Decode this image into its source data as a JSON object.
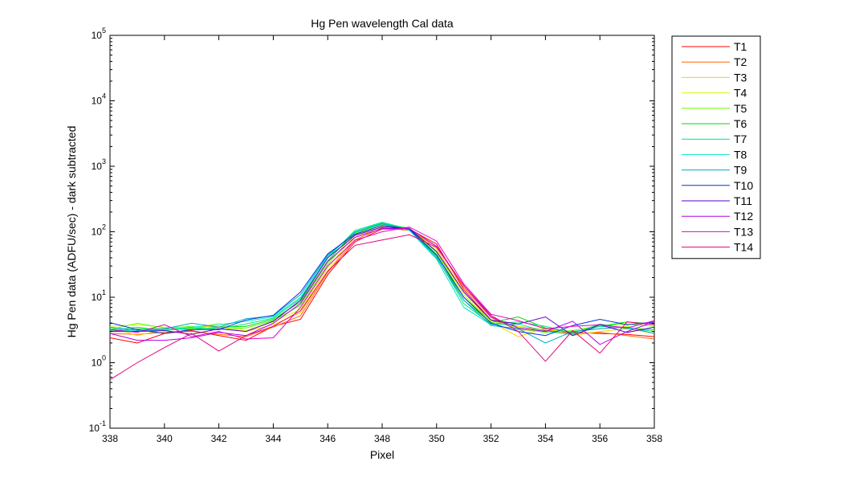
{
  "chart_data": {
    "type": "line",
    "title": "Hg Pen wavelength Cal data",
    "xlabel": "Pixel",
    "ylabel": "Hg Pen data (ADFU/sec) - dark subtracted",
    "xlim": [
      338,
      358
    ],
    "ylim": [
      0.1,
      100000
    ],
    "yscale": "log",
    "xticks": [
      "338",
      "340",
      "342",
      "344",
      "346",
      "348",
      "350",
      "352",
      "354",
      "356",
      "358"
    ],
    "yticks": [
      {
        "base": "10",
        "exp": "-1"
      },
      {
        "base": "10",
        "exp": "0"
      },
      {
        "base": "10",
        "exp": "1"
      },
      {
        "base": "10",
        "exp": "2"
      },
      {
        "base": "10",
        "exp": "3"
      },
      {
        "base": "10",
        "exp": "4"
      },
      {
        "base": "10",
        "exp": "5"
      }
    ],
    "grid": false,
    "legend_position": "outside-top-right",
    "x": [
      338,
      339,
      340,
      341,
      342,
      343,
      344,
      345,
      346,
      347,
      348,
      349,
      350,
      351,
      352,
      353,
      354,
      355,
      356,
      357,
      358
    ],
    "series": [
      {
        "name": "T1",
        "color": "#ff0000",
        "values": [
          2.4,
          2.0,
          2.8,
          3.1,
          2.6,
          2.2,
          3.6,
          4.6,
          22,
          70,
          110,
          110,
          65,
          13,
          4.5,
          3.6,
          3.1,
          2.9,
          2.8,
          2.7,
          2.5
        ]
      },
      {
        "name": "T2",
        "color": "#ff6600",
        "values": [
          2.8,
          2.7,
          2.9,
          3.0,
          2.7,
          2.5,
          3.5,
          5.2,
          24,
          75,
          115,
          105,
          60,
          14,
          4.9,
          3.2,
          3.0,
          2.8,
          2.9,
          2.6,
          2.3
        ]
      },
      {
        "name": "T3",
        "color": "#ffcc00",
        "values": [
          3.5,
          2.6,
          3.2,
          3.5,
          3.6,
          3.0,
          3.8,
          5.8,
          25,
          82,
          120,
          110,
          55,
          12,
          4.2,
          2.5,
          3.4,
          2.6,
          3.0,
          3.3,
          2.8
        ]
      },
      {
        "name": "T4",
        "color": "#ccff00",
        "values": [
          3.6,
          3.8,
          3.5,
          3.3,
          4.0,
          3.1,
          4.2,
          6.5,
          28,
          90,
          125,
          112,
          50,
          11,
          4.0,
          3.6,
          3.2,
          3.0,
          3.3,
          3.6,
          3.1
        ]
      },
      {
        "name": "T5",
        "color": "#66ff00",
        "values": [
          3.2,
          4.0,
          3.4,
          3.6,
          3.2,
          3.4,
          4.4,
          7.5,
          32,
          95,
          130,
          115,
          48,
          10,
          4.4,
          3.3,
          2.9,
          3.1,
          3.7,
          3.9,
          3.6
        ]
      },
      {
        "name": "T6",
        "color": "#00dd00",
        "values": [
          3.0,
          3.3,
          3.3,
          3.2,
          3.5,
          3.6,
          4.6,
          8.5,
          36,
          100,
          135,
          112,
          45,
          9,
          4.1,
          5.0,
          3.4,
          2.9,
          3.6,
          4.2,
          3.9
        ]
      },
      {
        "name": "T7",
        "color": "#00e676",
        "values": [
          3.1,
          3.5,
          3.1,
          3.4,
          3.3,
          3.9,
          4.8,
          9.5,
          40,
          105,
          140,
          110,
          42,
          8,
          3.9,
          4.2,
          3.6,
          2.8,
          3.9,
          3.3,
          3.2
        ]
      },
      {
        "name": "T8",
        "color": "#00e6c8",
        "values": [
          3.3,
          3.0,
          3.2,
          3.5,
          3.8,
          4.3,
          5.0,
          10,
          42,
          100,
          138,
          105,
          38,
          7,
          3.8,
          3.9,
          3.0,
          2.7,
          3.6,
          3.4,
          3.0
        ]
      },
      {
        "name": "T9",
        "color": "#00a8c8",
        "values": [
          3.5,
          3.1,
          3.3,
          4.0,
          3.5,
          4.7,
          5.2,
          11,
          44,
          98,
          132,
          108,
          40,
          9,
          3.7,
          3.3,
          2.0,
          3.0,
          3.3,
          3.5,
          2.8
        ]
      },
      {
        "name": "T10",
        "color": "#0033dd",
        "values": [
          4.1,
          3.2,
          2.8,
          3.2,
          3.2,
          4.5,
          5.3,
          12,
          46,
          92,
          125,
          110,
          44,
          10,
          4.0,
          3.0,
          2.6,
          3.7,
          4.6,
          3.8,
          4.2
        ]
      },
      {
        "name": "T11",
        "color": "#5500cc",
        "values": [
          3.0,
          3.0,
          3.1,
          2.7,
          3.3,
          3.0,
          4.3,
          9.0,
          40,
          88,
          118,
          112,
          50,
          12,
          4.5,
          3.9,
          5.0,
          2.6,
          3.8,
          2.9,
          3.5
        ]
      },
      {
        "name": "T12",
        "color": "#b000e6",
        "values": [
          2.8,
          2.2,
          2.2,
          2.4,
          2.9,
          2.6,
          4.0,
          8.0,
          35,
          82,
          112,
          112,
          60,
          15,
          5.0,
          3.4,
          3.0,
          4.3,
          1.9,
          3.0,
          4.2
        ]
      },
      {
        "name": "T13",
        "color": "#e600c8",
        "values": [
          3.2,
          2.9,
          3.8,
          2.5,
          3.0,
          2.3,
          2.4,
          7.0,
          30,
          74,
          100,
          118,
          72,
          16,
          5.5,
          4.4,
          3.3,
          3.6,
          3.8,
          3.4,
          4.4
        ]
      },
      {
        "name": "T14",
        "color": "#e6007a",
        "values": [
          0.55,
          1.0,
          1.7,
          2.8,
          1.5,
          2.6,
          3.6,
          6.2,
          25,
          62,
          75,
          90,
          58,
          15,
          5.3,
          3.0,
          1.05,
          3.1,
          1.4,
          4.2,
          3.8
        ]
      }
    ]
  }
}
